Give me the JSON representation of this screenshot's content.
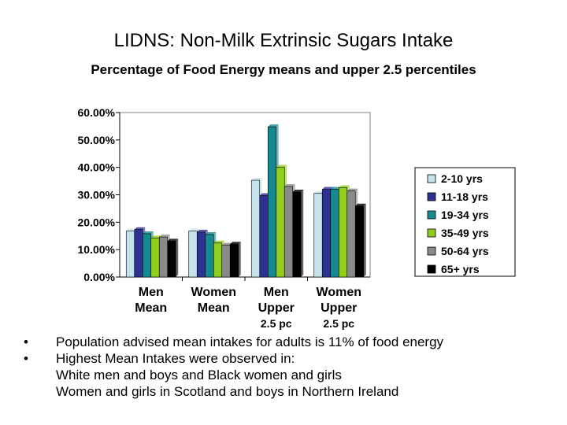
{
  "slide": {
    "title": "LIDNS: Non-Milk Extrinsic Sugars Intake",
    "subtitle": "Percentage of Food Energy means and upper 2.5 percentiles"
  },
  "chart_data": {
    "type": "bar",
    "title": "",
    "xlabel": "",
    "ylabel": "",
    "ylim": [
      0,
      60
    ],
    "yticks": [
      "0.00%",
      "10.00%",
      "20.00%",
      "30.00%",
      "40.00%",
      "50.00%",
      "60.00%"
    ],
    "grid": false,
    "legend_position": "right",
    "categories": [
      [
        "Men",
        "Mean"
      ],
      [
        "Women",
        "Mean"
      ],
      [
        "Men",
        "Upper",
        "2.5 pc"
      ],
      [
        "Women",
        "Upper",
        "2.5 pc"
      ]
    ],
    "series": [
      {
        "name": "2-10 yrs",
        "color": "#c5e3ec",
        "values": [
          16.8,
          16.8,
          35.3,
          30.5
        ]
      },
      {
        "name": "11-18 yrs",
        "color": "#2e3192",
        "values": [
          17.3,
          16.4,
          29.7,
          32.0
        ]
      },
      {
        "name": "19-34 yrs",
        "color": "#15898f",
        "values": [
          15.8,
          15.5,
          54.8,
          32.0
        ]
      },
      {
        "name": "35-49 yrs",
        "color": "#8fce1c",
        "values": [
          14.2,
          12.4,
          40.0,
          32.6
        ]
      },
      {
        "name": "50-64 yrs",
        "color": "#8a8a8a",
        "values": [
          14.6,
          11.6,
          33.0,
          31.4
        ]
      },
      {
        "name": "65+ yrs",
        "color": "#000000",
        "values": [
          13.1,
          12.0,
          31.0,
          25.9
        ]
      }
    ]
  },
  "bullets": {
    "b1": "Population advised mean intakes for adults is 11% of food energy",
    "b2": "Highest Mean Intakes were observed in:",
    "b2_line2": "White men and boys and Black women and girls",
    "b2_line3": "Women and girls in Scotland and boys in Northern Ireland"
  }
}
